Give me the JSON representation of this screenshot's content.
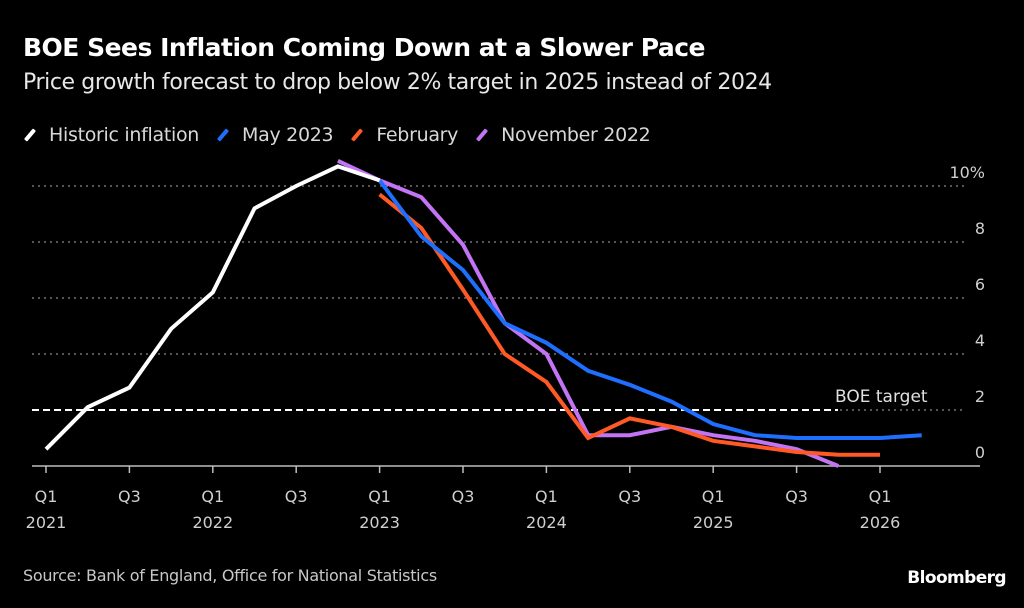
{
  "header": {
    "title": "BOE Sees Inflation Coming Down at a Slower Pace",
    "subtitle": "Price growth forecast to drop below 2% target in 2025 instead of 2024"
  },
  "legend": [
    {
      "label": "Historic inflation",
      "color": "#ffffff"
    },
    {
      "label": "May 2023",
      "color": "#1f6fff"
    },
    {
      "label": "February",
      "color": "#ff5a26"
    },
    {
      "label": "November 2022",
      "color": "#c374f5"
    }
  ],
  "footer": {
    "source": "Source: Bank of England, Office for National Statistics",
    "brand": "Bloomberg"
  },
  "chart_data": {
    "type": "line",
    "title": "BOE Sees Inflation Coming Down at a Slower Pace",
    "subtitle": "Price growth forecast to drop below 2% target in 2025 instead of 2024",
    "xlabel": "",
    "ylabel": "",
    "x": [
      "Q1 2021",
      "Q2 2021",
      "Q3 2021",
      "Q4 2021",
      "Q1 2022",
      "Q2 2022",
      "Q3 2022",
      "Q4 2022",
      "Q1 2023",
      "Q2 2023",
      "Q3 2023",
      "Q4 2023",
      "Q1 2024",
      "Q2 2024",
      "Q3 2024",
      "Q4 2024",
      "Q1 2025",
      "Q2 2025",
      "Q3 2025",
      "Q4 2025",
      "Q1 2026",
      "Q2 2026"
    ],
    "x_tick_labels": [
      {
        "quarter": "Q1",
        "year": "2021",
        "index": 0
      },
      {
        "quarter": "Q3",
        "year": "",
        "index": 2
      },
      {
        "quarter": "Q1",
        "year": "2022",
        "index": 4
      },
      {
        "quarter": "Q3",
        "year": "",
        "index": 6
      },
      {
        "quarter": "Q1",
        "year": "2023",
        "index": 8
      },
      {
        "quarter": "Q3",
        "year": "",
        "index": 10
      },
      {
        "quarter": "Q1",
        "year": "2024",
        "index": 12
      },
      {
        "quarter": "Q3",
        "year": "",
        "index": 14
      },
      {
        "quarter": "Q1",
        "year": "2025",
        "index": 16
      },
      {
        "quarter": "Q3",
        "year": "",
        "index": 18
      },
      {
        "quarter": "Q1",
        "year": "2026",
        "index": 20
      }
    ],
    "y_ticks": [
      {
        "value": 0,
        "label": "0"
      },
      {
        "value": 2,
        "label": "2"
      },
      {
        "value": 4,
        "label": "4"
      },
      {
        "value": 6,
        "label": "6"
      },
      {
        "value": 8,
        "label": "8"
      },
      {
        "value": 10,
        "label": "10%"
      }
    ],
    "ylim": [
      0,
      10.9
    ],
    "grid": true,
    "legend_position": "top-left",
    "series": [
      {
        "name": "Historic inflation",
        "color": "#ffffff",
        "start_index": 0,
        "values": [
          0.6,
          2.1,
          2.8,
          4.9,
          6.2,
          9.2,
          10.0,
          10.7,
          10.2
        ]
      },
      {
        "name": "May 2023",
        "color": "#1f6fff",
        "start_index": 8,
        "values": [
          10.2,
          8.2,
          7.0,
          5.1,
          4.4,
          3.4,
          2.9,
          2.3,
          1.5,
          1.1,
          1.0,
          1.0,
          1.0,
          1.1
        ]
      },
      {
        "name": "February",
        "color": "#ff5a26",
        "start_index": 8,
        "values": [
          9.7,
          8.5,
          6.3,
          4.0,
          3.0,
          1.0,
          1.7,
          1.4,
          0.9,
          0.7,
          0.5,
          0.4,
          0.4
        ]
      },
      {
        "name": "November 2022",
        "color": "#c374f5",
        "start_index": 7,
        "values": [
          10.9,
          10.2,
          9.6,
          7.9,
          5.1,
          4.0,
          1.1,
          1.1,
          1.4,
          1.1,
          0.9,
          0.6,
          0.0
        ]
      }
    ],
    "annotations": [
      {
        "type": "hline",
        "value": 2,
        "label": "BOE target",
        "style": "dashed"
      }
    ]
  }
}
